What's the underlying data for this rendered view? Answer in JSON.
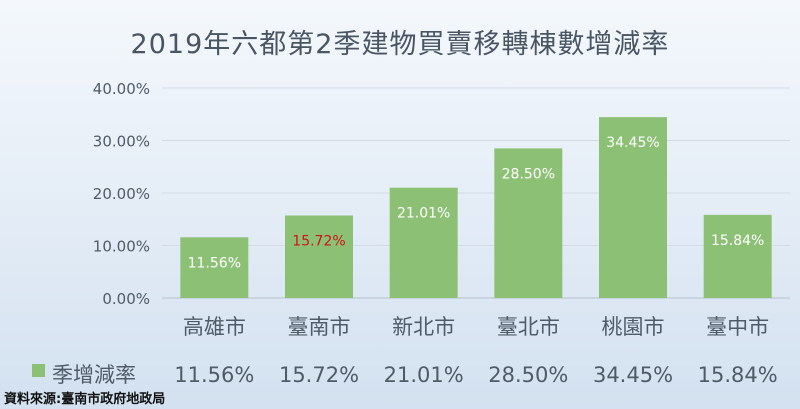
{
  "title": "2019年六都第2季建物買賣移轉棟數增減率",
  "source": "資料來源:臺南市政府地政局",
  "chart_data": {
    "type": "bar",
    "categories": [
      "高雄市",
      "臺南市",
      "新北市",
      "臺北市",
      "桃園市",
      "臺中市"
    ],
    "series": [
      {
        "name": "季增減率",
        "values": [
          11.56,
          15.72,
          21.01,
          28.5,
          34.45,
          15.84
        ],
        "labels": [
          "11.56%",
          "15.72%",
          "21.01%",
          "28.50%",
          "34.45%",
          "15.84%"
        ],
        "color": "#8cc175"
      }
    ],
    "highlight_category": "臺南市",
    "highlight_label_color": "#d0121b",
    "ylim": [
      0,
      40
    ],
    "yticks": [
      "0.00%",
      "10.00%",
      "20.00%",
      "30.00%",
      "40.00%"
    ],
    "grid": true,
    "legend": "bottom-left data table"
  }
}
